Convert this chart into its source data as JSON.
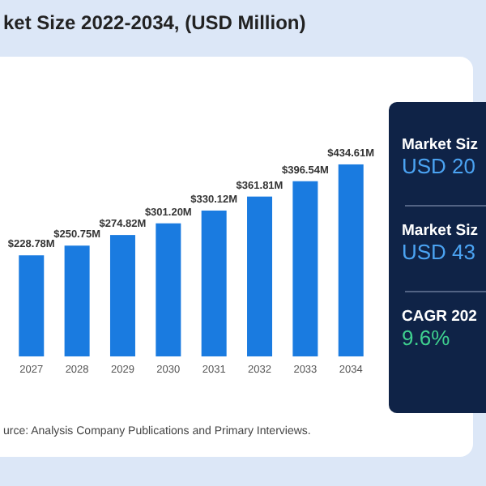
{
  "chart_data": [
    {
      "type": "bar",
      "title": "ket Size 2022-2034, (USD Million)",
      "categories": [
        "2027",
        "2028",
        "2029",
        "2030",
        "2031",
        "2032",
        "2033",
        "2034"
      ],
      "values": [
        228.78,
        250.75,
        274.82,
        301.2,
        330.12,
        361.81,
        396.54,
        434.61
      ],
      "color": "#1a7be0",
      "value_labels": [
        "$228.78M",
        "$250.75M",
        "$274.82M",
        "$301.20M",
        "$330.12M",
        "$361.81M",
        "$396.54M",
        "$434.61M"
      ],
      "annotations": [
        "urce: Analysis Company Publications and Primary Interviews."
      ]
    },
    {
      "type": "other",
      "annotations": [
        "Market Siz",
        "USD 20",
        "Market Siz",
        "USD 43",
        "CAGR 202",
        "9.6%"
      ]
    }
  ]
}
